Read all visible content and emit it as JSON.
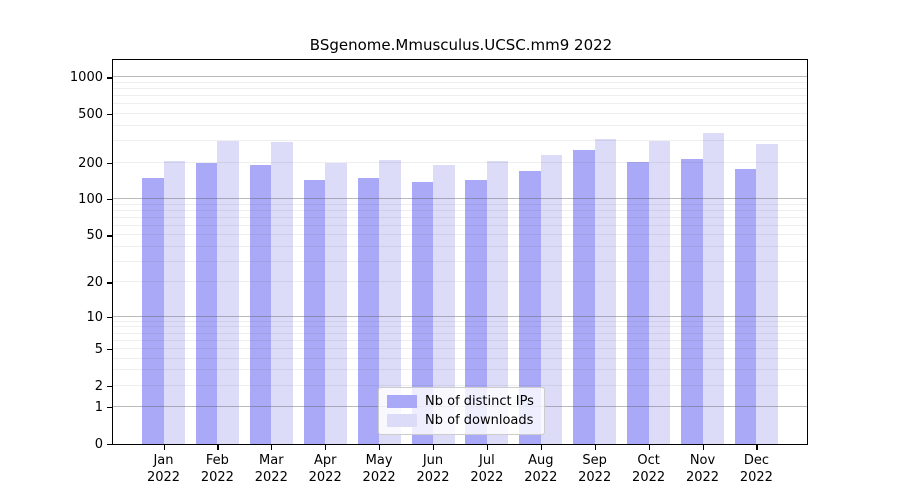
{
  "title": "BSgenome.Mmusculus.UCSC.mm9 2022",
  "chart_data": {
    "type": "bar",
    "title": "BSgenome.Mmusculus.UCSC.mm9 2022",
    "scale": "log(1+x)",
    "categories": [
      "Jan",
      "Feb",
      "Mar",
      "Apr",
      "May",
      "Jun",
      "Jul",
      "Aug",
      "Sep",
      "Oct",
      "Nov",
      "Dec"
    ],
    "year": "2022",
    "series": [
      {
        "name": "Nb of distinct IPs",
        "color": "#a9a9f7",
        "values": [
          150,
          199,
          190,
          143,
          149,
          138,
          145,
          170,
          252,
          202,
          213,
          177
        ]
      },
      {
        "name": "Nb of downloads",
        "color": "#dcdcf8",
        "values": [
          208,
          300,
          293,
          199,
          209,
          190,
          207,
          233,
          310,
          300,
          347,
          287
        ]
      }
    ],
    "xlabel": "",
    "ylabel": "",
    "y_ticks": [
      0,
      1,
      2,
      5,
      10,
      20,
      50,
      100,
      200,
      500,
      1000
    ],
    "major_gridlines": [
      1,
      10,
      100,
      1000
    ],
    "minor_gridlines": [
      2,
      3,
      4,
      5,
      6,
      7,
      8,
      9,
      20,
      30,
      40,
      50,
      60,
      70,
      80,
      90,
      200,
      300,
      400,
      500,
      600,
      700,
      800,
      900
    ],
    "ylim": [
      0,
      1400
    ],
    "grid": true,
    "legend_position": "lower-center"
  }
}
